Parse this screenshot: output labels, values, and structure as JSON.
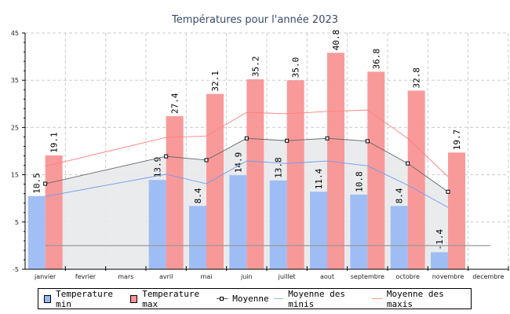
{
  "chart_data": {
    "type": "bar",
    "title": "Températures pour l'année 2023",
    "categories": [
      "janvier",
      "fevrier",
      "mars",
      "avril",
      "mai",
      "juin",
      "juillet",
      "aout",
      "septembre",
      "octobre",
      "novembre",
      "decembre"
    ],
    "ylim": [
      -5,
      45
    ],
    "yticks": [
      45,
      35,
      25,
      15,
      5,
      -5
    ],
    "grid": true,
    "legend_position": "bottom",
    "series": [
      {
        "name": "Temperature min",
        "type": "bar",
        "color": "#97b8f5",
        "values": [
          10.5,
          null,
          null,
          13.9,
          8.4,
          14.9,
          13.8,
          11.4,
          10.8,
          8.4,
          -1.4,
          null
        ],
        "labels": [
          "10.5",
          null,
          null,
          "13.9",
          "8.4",
          "14.9",
          "13.8",
          "11.4",
          "10.8",
          "8.4",
          "-1.4",
          null
        ]
      },
      {
        "name": "Temperature max",
        "type": "bar",
        "color": "#f99595",
        "values": [
          19.1,
          null,
          null,
          27.4,
          32.1,
          35.2,
          35.0,
          40.8,
          36.8,
          32.8,
          19.7,
          null
        ],
        "labels": [
          "19.1",
          null,
          null,
          "27.4",
          "32.1",
          "35.2",
          "35.0",
          "40.8",
          "36.8",
          "32.8",
          "19.7",
          null
        ]
      },
      {
        "name": "Moyenne",
        "type": "line",
        "color": "#555555",
        "values": [
          13.1,
          null,
          null,
          18.9,
          18.1,
          22.7,
          22.2,
          22.7,
          22.1,
          17.4,
          11.4,
          null
        ]
      },
      {
        "name": "Moyenne des minis",
        "type": "line",
        "color": "#6f9af0",
        "values": [
          10.4,
          null,
          null,
          15.1,
          13.1,
          17.9,
          17.4,
          17.9,
          16.9,
          12.8,
          8.1,
          null
        ]
      },
      {
        "name": "Moyenne des maxis",
        "type": "line",
        "color": "#ff6a6a",
        "values": [
          16.8,
          null,
          null,
          22.9,
          23.2,
          28.2,
          27.9,
          28.4,
          28.7,
          22.7,
          14.6,
          null
        ]
      }
    ]
  }
}
